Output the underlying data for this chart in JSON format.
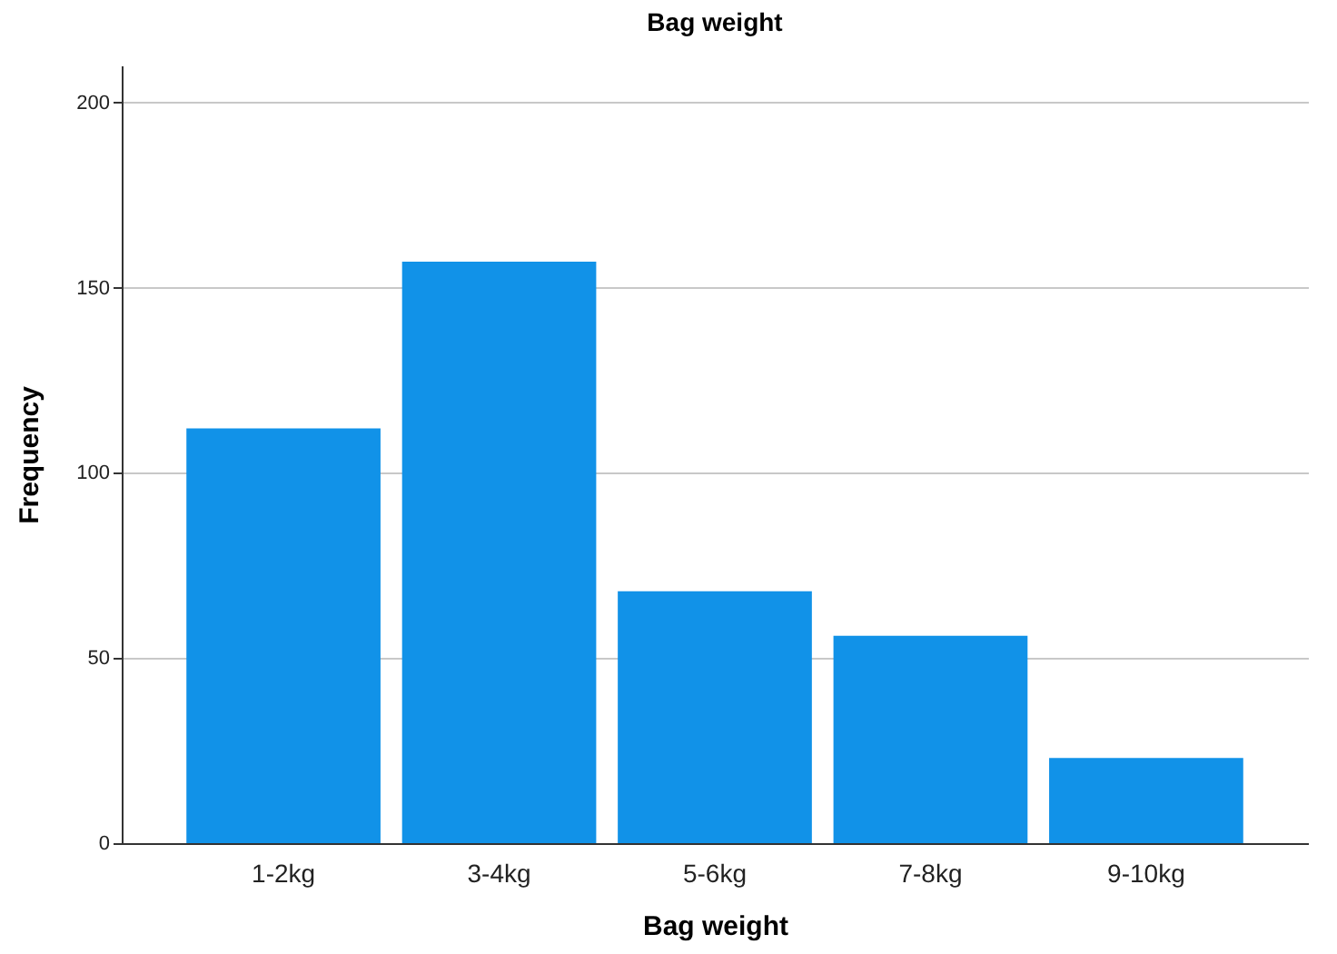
{
  "chart_data": {
    "type": "bar",
    "title": "Bag weight",
    "xlabel": "Bag weight",
    "ylabel": "Frequency",
    "categories": [
      "1-2kg",
      "3-4kg",
      "5-6kg",
      "7-8kg",
      "9-10kg"
    ],
    "values": [
      112,
      157,
      68,
      56,
      23
    ],
    "color": "#1192e8",
    "ylim": [
      0,
      210
    ],
    "yticks": [
      0,
      50,
      100,
      150,
      200
    ],
    "grid": "y"
  }
}
